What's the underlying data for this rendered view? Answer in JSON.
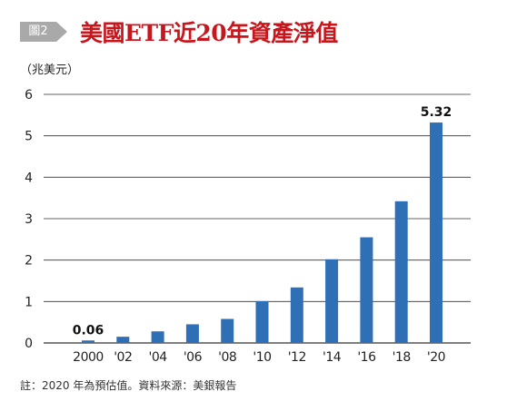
{
  "header": {
    "figure_tag": "圖2",
    "title": "美國ETF近20年資產淨值"
  },
  "colors": {
    "bar": "#2f6fb5",
    "title": "#c8161d",
    "gridline": "#333333",
    "tag_bg": "#a9a9a9"
  },
  "chart_data": {
    "type": "bar",
    "title": "美國ETF近20年資產淨值",
    "ylabel": "（兆美元）",
    "xlabel": "",
    "categories": [
      "2000",
      "'02",
      "'04",
      "'06",
      "'08",
      "'10",
      "'12",
      "'14",
      "'16",
      "'18",
      "'20"
    ],
    "values": [
      0.06,
      0.15,
      0.28,
      0.45,
      0.58,
      1.01,
      1.34,
      2.02,
      2.55,
      3.42,
      5.32
    ],
    "data_labels": [
      {
        "index": 0,
        "text": "0.06"
      },
      {
        "index": 10,
        "text": "5.32"
      }
    ],
    "ylim": [
      0,
      6
    ],
    "yticks": [
      0,
      1,
      2,
      3,
      4,
      5,
      6
    ],
    "grid": true,
    "legend": "none"
  },
  "footnote": "註：2020 年為預估值。資料來源：美銀報告"
}
